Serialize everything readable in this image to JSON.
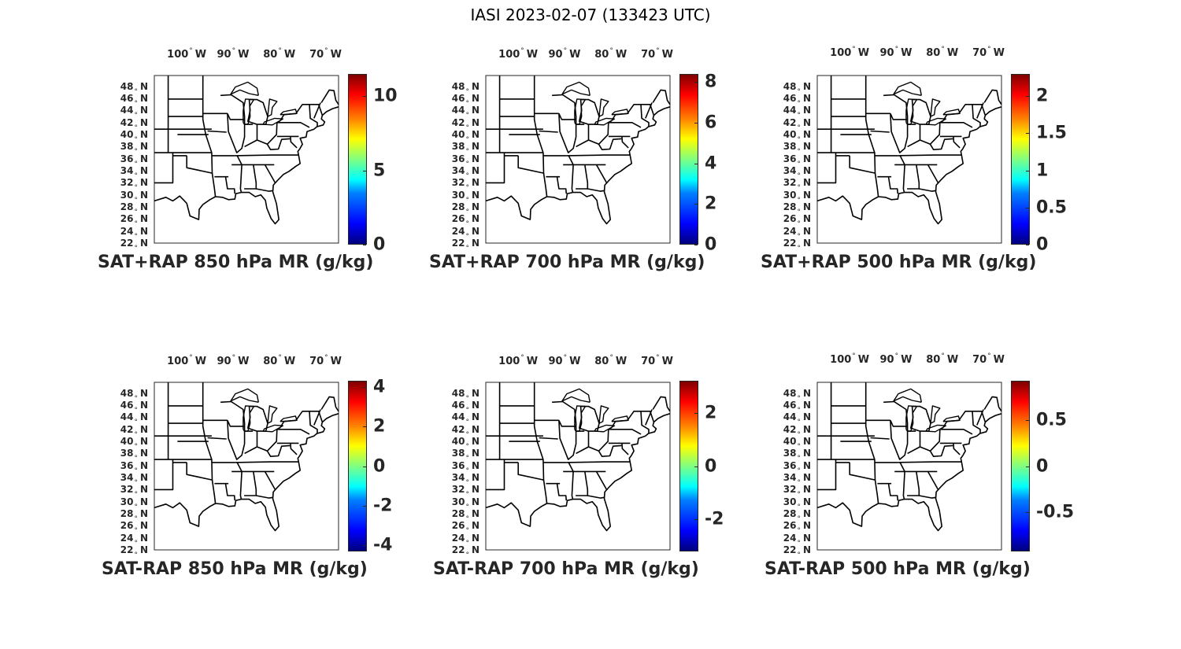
{
  "figure": {
    "title": "IASI 2023-02-07 (133423 UTC)"
  },
  "lon_labels": [
    {
      "deg": "100",
      "hem": "W"
    },
    {
      "deg": "90",
      "hem": "W"
    },
    {
      "deg": "80",
      "hem": "W"
    },
    {
      "deg": "70",
      "hem": "W"
    }
  ],
  "lat_labels": [
    {
      "deg": "48",
      "hem": "N"
    },
    {
      "deg": "46",
      "hem": "N"
    },
    {
      "deg": "44",
      "hem": "N"
    },
    {
      "deg": "42",
      "hem": "N"
    },
    {
      "deg": "40",
      "hem": "N"
    },
    {
      "deg": "38",
      "hem": "N"
    },
    {
      "deg": "36",
      "hem": "N"
    },
    {
      "deg": "34",
      "hem": "N"
    },
    {
      "deg": "32",
      "hem": "N"
    },
    {
      "deg": "30",
      "hem": "N"
    },
    {
      "deg": "28",
      "hem": "N"
    },
    {
      "deg": "26",
      "hem": "N"
    },
    {
      "deg": "24",
      "hem": "N"
    },
    {
      "deg": "22",
      "hem": "N"
    }
  ],
  "degree_symbol": "°",
  "colormap": "jet",
  "panels": [
    {
      "title": "SAT+RAP 850 hPa MR (g/kg)",
      "cmin": 0,
      "cmax": 11.5,
      "ticks": [
        {
          "label": "0",
          "value": 0
        },
        {
          "label": "5",
          "value": 5
        },
        {
          "label": "10",
          "value": 10
        }
      ]
    },
    {
      "title": "SAT+RAP 700 hPa MR (g/kg)",
      "cmin": 0,
      "cmax": 8.4,
      "ticks": [
        {
          "label": "0",
          "value": 0
        },
        {
          "label": "2",
          "value": 2
        },
        {
          "label": "4",
          "value": 4
        },
        {
          "label": "6",
          "value": 6
        },
        {
          "label": "8",
          "value": 8
        }
      ]
    },
    {
      "title": "SAT+RAP 500 hPa MR (g/kg)",
      "cmin": 0,
      "cmax": 2.3,
      "ticks": [
        {
          "label": "0",
          "value": 0
        },
        {
          "label": "0.5",
          "value": 0.5
        },
        {
          "label": "1",
          "value": 1
        },
        {
          "label": "1.5",
          "value": 1.5
        },
        {
          "label": "2",
          "value": 2
        }
      ]
    },
    {
      "title": "SAT-RAP 850 hPa MR (g/kg)",
      "cmin": -4.3,
      "cmax": 4.3,
      "ticks": [
        {
          "label": "-4",
          "value": -4
        },
        {
          "label": "-2",
          "value": -2
        },
        {
          "label": "0",
          "value": 0
        },
        {
          "label": "2",
          "value": 2
        },
        {
          "label": "4",
          "value": 4
        }
      ]
    },
    {
      "title": "SAT-RAP 700 hPa MR (g/kg)",
      "cmin": -3.2,
      "cmax": 3.2,
      "ticks": [
        {
          "label": "-2",
          "value": -2
        },
        {
          "label": "0",
          "value": 0
        },
        {
          "label": "2",
          "value": 2
        }
      ]
    },
    {
      "title": "SAT-RAP 500 hPa MR (g/kg)",
      "cmin": -0.93,
      "cmax": 0.93,
      "ticks": [
        {
          "label": "-0.5",
          "value": -0.5
        },
        {
          "label": "0",
          "value": 0
        },
        {
          "label": "0.5",
          "value": 0.5
        }
      ]
    }
  ]
}
